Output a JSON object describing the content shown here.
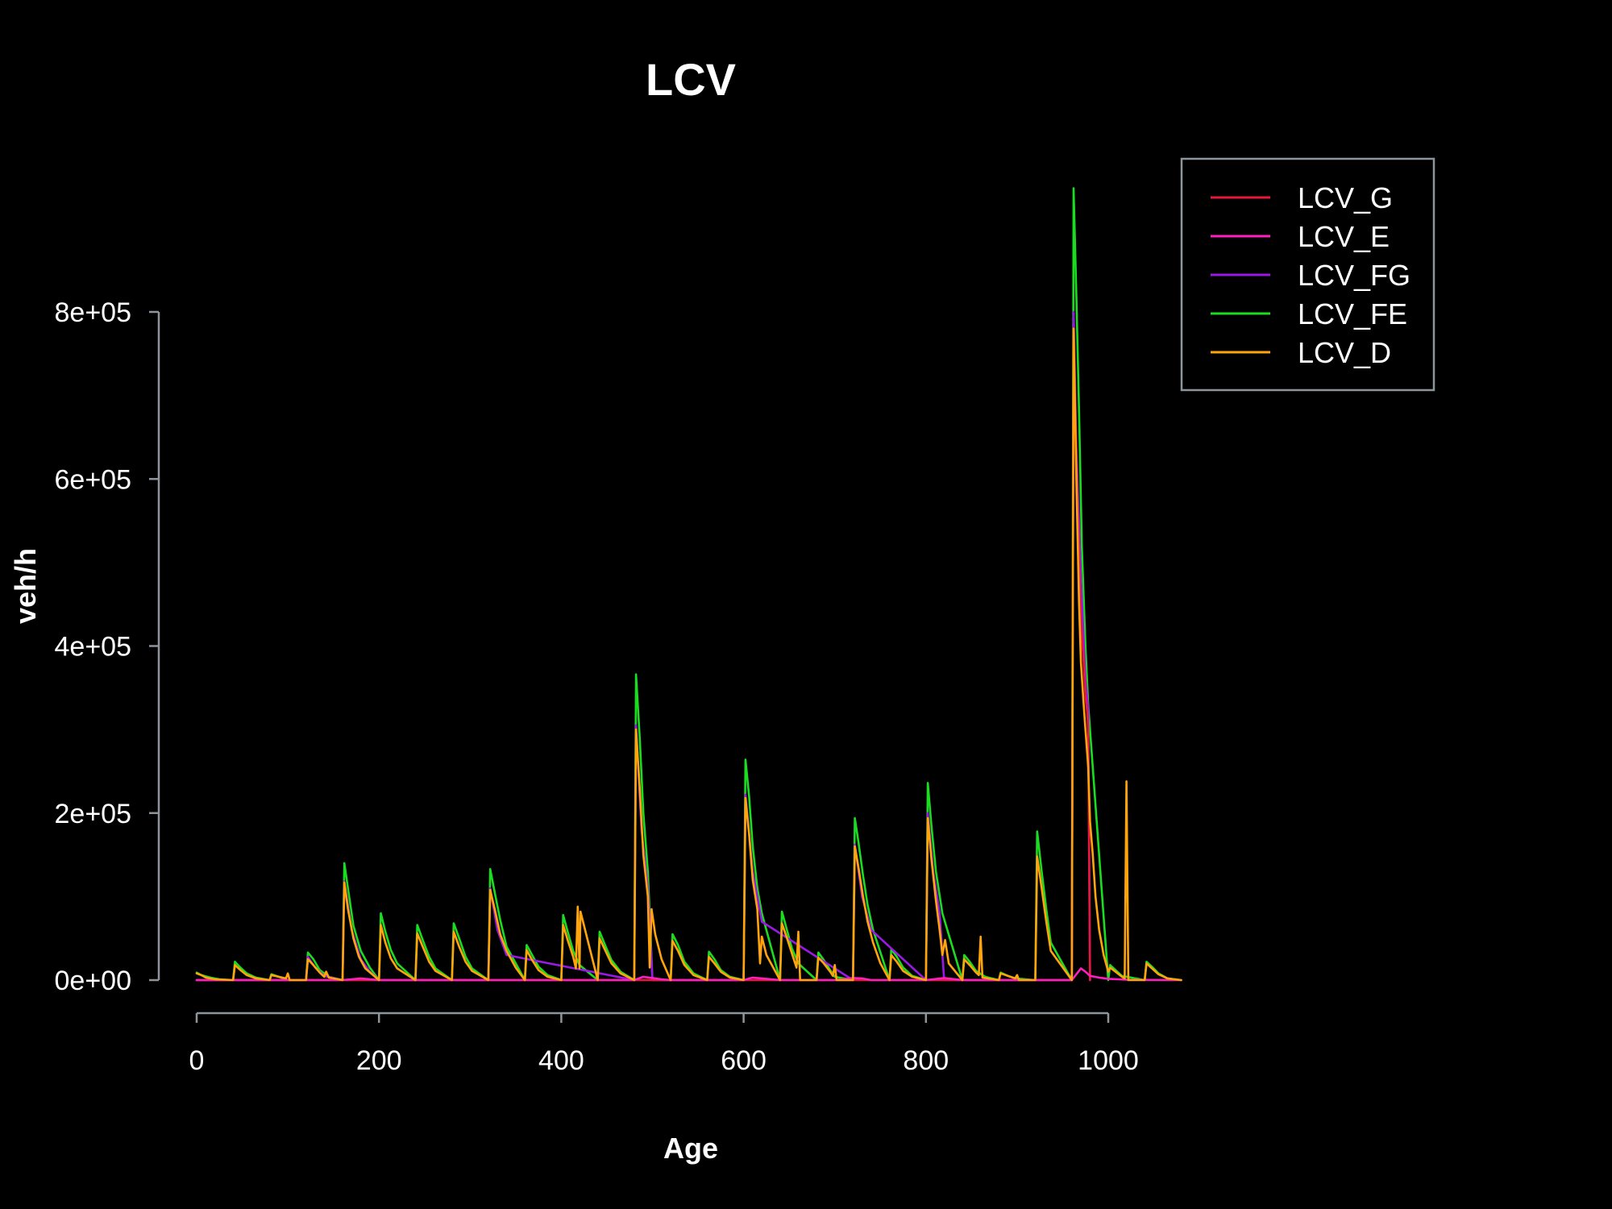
{
  "chart_data": {
    "type": "line",
    "title": "LCV",
    "xlabel": "Age",
    "ylabel": "veh/h",
    "xlim": [
      0,
      1080
    ],
    "ylim": [
      0,
      900000
    ],
    "x_ticks": [
      0,
      200,
      400,
      600,
      800,
      1000
    ],
    "x_tick_labels": [
      "0",
      "200",
      "400",
      "600",
      "800",
      "1000"
    ],
    "y_ticks": [
      0,
      200000,
      400000,
      600000,
      800000
    ],
    "y_tick_labels": [
      "0e+00",
      "2e+05",
      "4e+05",
      "6e+05",
      "8e+05"
    ],
    "legend_position": "top-right",
    "grid": false,
    "background": "#000000",
    "series": [
      {
        "name": "LCV_G",
        "color": "#e8173e",
        "x": [
          0,
          960,
          962,
          965,
          968,
          970,
          973,
          975,
          977,
          978,
          980
        ],
        "y": [
          0,
          0,
          780000,
          620000,
          500000,
          430000,
          380000,
          340000,
          320000,
          300000,
          0
        ]
      },
      {
        "name": "LCV_E",
        "color": "#ff1fbf",
        "x": [
          0,
          160,
          180,
          200,
          240,
          300,
          360,
          420,
          480,
          490,
          500,
          510,
          520,
          600,
          610,
          620,
          640,
          700,
          720,
          730,
          740,
          800,
          820,
          840,
          900,
          960,
          970,
          975,
          980,
          990,
          1000,
          1020,
          1040,
          1080
        ],
        "y": [
          0,
          0,
          2000,
          0,
          0,
          0,
          0,
          0,
          0,
          4000,
          2500,
          1000,
          0,
          0,
          3000,
          2000,
          0,
          0,
          2500,
          2000,
          0,
          0,
          2500,
          0,
          0,
          0,
          14000,
          10000,
          5000,
          3000,
          1500,
          500,
          200,
          0
        ]
      },
      {
        "name": "LCV_FG",
        "color": "#9b19e6",
        "x": [
          0,
          120,
          122,
          130,
          140,
          160,
          162,
          170,
          180,
          190,
          200,
          320,
          322,
          330,
          340,
          480,
          482,
          488,
          495,
          500,
          600,
          602,
          610,
          620,
          720,
          722,
          730,
          740,
          800,
          802,
          808,
          815,
          820,
          960,
          962,
          965,
          970,
          975,
          978,
          980
        ],
        "y": [
          0,
          0,
          28000,
          15000,
          5000,
          0,
          118000,
          60000,
          25000,
          10000,
          0,
          0,
          110000,
          60000,
          30000,
          0,
          305000,
          180000,
          110000,
          0,
          0,
          222000,
          130000,
          70000,
          0,
          162000,
          100000,
          60000,
          0,
          200000,
          130000,
          80000,
          0,
          0,
          800000,
          640000,
          480000,
          360000,
          325000,
          0
        ]
      },
      {
        "name": "LCV_FE",
        "color": "#1bdc20",
        "x": [
          0,
          5,
          15,
          25,
          40,
          42,
          48,
          55,
          65,
          80,
          82,
          90,
          95,
          100,
          120,
          122,
          128,
          135,
          145,
          160,
          162,
          166,
          172,
          180,
          190,
          200,
          202,
          207,
          213,
          220,
          240,
          242,
          248,
          255,
          262,
          280,
          282,
          288,
          295,
          302,
          320,
          322,
          327,
          333,
          340,
          360,
          362,
          368,
          375,
          385,
          400,
          402,
          407,
          413,
          420,
          440,
          442,
          448,
          455,
          465,
          480,
          482,
          486,
          490,
          495,
          500,
          520,
          522,
          528,
          535,
          545,
          560,
          562,
          568,
          575,
          585,
          600,
          602,
          606,
          610,
          615,
          620,
          640,
          642,
          647,
          653,
          660,
          680,
          682,
          688,
          695,
          700,
          720,
          722,
          726,
          731,
          736,
          742,
          760,
          762,
          768,
          775,
          785,
          800,
          802,
          806,
          811,
          818,
          840,
          842,
          848,
          855,
          865,
          880,
          882,
          890,
          898,
          920,
          922,
          927,
          932,
          937,
          960,
          962,
          965,
          968,
          971,
          975,
          978,
          1000,
          1002,
          1008,
          1015,
          1040,
          1042,
          1048,
          1055,
          1065,
          1080
        ],
        "y": [
          9000,
          6000,
          3000,
          1000,
          0,
          22000,
          15000,
          8000,
          3000,
          0,
          7000,
          4000,
          2000,
          0,
          0,
          33000,
          25000,
          12000,
          4000,
          0,
          140000,
          110000,
          65000,
          35000,
          15000,
          0,
          80000,
          58000,
          36000,
          20000,
          0,
          66000,
          48000,
          28000,
          14000,
          0,
          68000,
          50000,
          28000,
          14000,
          0,
          133000,
          105000,
          72000,
          40000,
          0,
          42000,
          30000,
          16000,
          6000,
          0,
          78000,
          58000,
          35000,
          18000,
          0,
          58000,
          42000,
          24000,
          10000,
          0,
          366000,
          290000,
          200000,
          130000,
          0,
          0,
          55000,
          42000,
          22000,
          8000,
          0,
          34000,
          25000,
          12000,
          4000,
          0,
          264000,
          220000,
          160000,
          110000,
          80000,
          0,
          82000,
          62000,
          38000,
          20000,
          0,
          33000,
          24000,
          12000,
          4000,
          0,
          194000,
          165000,
          125000,
          90000,
          60000,
          0,
          37000,
          28000,
          15000,
          5000,
          0,
          236000,
          185000,
          130000,
          80000,
          0,
          30000,
          22000,
          11000,
          4000,
          0,
          9000,
          5000,
          2000,
          0,
          178000,
          130000,
          85000,
          45000,
          0,
          948000,
          820000,
          680000,
          520000,
          400000,
          330000,
          0,
          18000,
          12000,
          5000,
          0,
          22000,
          16000,
          8000,
          2000,
          0
        ]
      },
      {
        "name": "LCV_D",
        "color": "#ffa40a",
        "x": [
          0,
          5,
          10,
          20,
          40,
          42,
          48,
          55,
          65,
          80,
          82,
          90,
          98,
          100,
          102,
          120,
          122,
          128,
          135,
          140,
          142,
          145,
          160,
          162,
          166,
          172,
          178,
          185,
          200,
          202,
          207,
          213,
          220,
          240,
          242,
          248,
          255,
          262,
          280,
          282,
          288,
          295,
          302,
          320,
          322,
          327,
          333,
          340,
          350,
          360,
          362,
          368,
          375,
          385,
          400,
          402,
          407,
          413,
          416,
          418,
          420,
          421,
          440,
          442,
          448,
          455,
          465,
          480,
          482,
          486,
          490,
          495,
          497,
          499,
          503,
          510,
          520,
          522,
          528,
          535,
          545,
          560,
          562,
          568,
          575,
          585,
          600,
          602,
          606,
          610,
          615,
          618,
          620,
          625,
          640,
          642,
          647,
          653,
          658,
          660,
          662,
          680,
          682,
          688,
          695,
          698,
          700,
          702,
          720,
          722,
          726,
          731,
          736,
          742,
          750,
          760,
          762,
          768,
          775,
          785,
          800,
          802,
          806,
          811,
          815,
          818,
          821,
          825,
          840,
          842,
          848,
          855,
          858,
          860,
          862,
          880,
          882,
          890,
          898,
          900,
          902,
          920,
          922,
          927,
          932,
          937,
          960,
          962,
          965,
          968,
          970,
          973,
          975,
          977,
          978,
          980,
          983,
          986,
          990,
          995,
          1000,
          1002,
          1008,
          1015,
          1018,
          1020,
          1022,
          1040,
          1042,
          1048,
          1055,
          1065,
          1080
        ],
        "y": [
          8000,
          6000,
          3000,
          1000,
          0,
          18000,
          12000,
          6000,
          2000,
          0,
          6000,
          4000,
          2000,
          8000,
          0,
          0,
          25000,
          18000,
          9000,
          4000,
          10000,
          3000,
          0,
          117000,
          85000,
          50000,
          28000,
          14000,
          0,
          66000,
          45000,
          26000,
          14000,
          0,
          56000,
          40000,
          22000,
          11000,
          0,
          58000,
          40000,
          22000,
          11000,
          0,
          108000,
          85000,
          55000,
          35000,
          15000,
          0,
          36000,
          24000,
          12000,
          4000,
          0,
          66000,
          48000,
          28000,
          14000,
          88000,
          14000,
          82000,
          0,
          50000,
          36000,
          20000,
          8000,
          0,
          300000,
          230000,
          150000,
          100000,
          15000,
          85000,
          55000,
          25000,
          0,
          47000,
          35000,
          18000,
          6000,
          0,
          28000,
          20000,
          10000,
          3000,
          0,
          218000,
          175000,
          120000,
          85000,
          20000,
          52000,
          30000,
          0,
          68000,
          52000,
          32000,
          15000,
          58000,
          0,
          0,
          27000,
          20000,
          10000,
          5000,
          18000,
          0,
          0,
          160000,
          135000,
          100000,
          70000,
          45000,
          20000,
          0,
          30000,
          22000,
          11000,
          4000,
          0,
          194000,
          145000,
          95000,
          60000,
          30000,
          48000,
          20000,
          0,
          25000,
          18000,
          9000,
          6000,
          52000,
          3000,
          0,
          8000,
          5000,
          2000,
          6000,
          0,
          0,
          148000,
          110000,
          70000,
          35000,
          0,
          780000,
          600000,
          450000,
          380000,
          330000,
          300000,
          270000,
          255000,
          190000,
          150000,
          100000,
          60000,
          30000,
          10000,
          15000,
          10000,
          4000,
          2000,
          238000,
          0,
          0,
          20000,
          14000,
          7000,
          2000,
          0
        ]
      }
    ]
  }
}
